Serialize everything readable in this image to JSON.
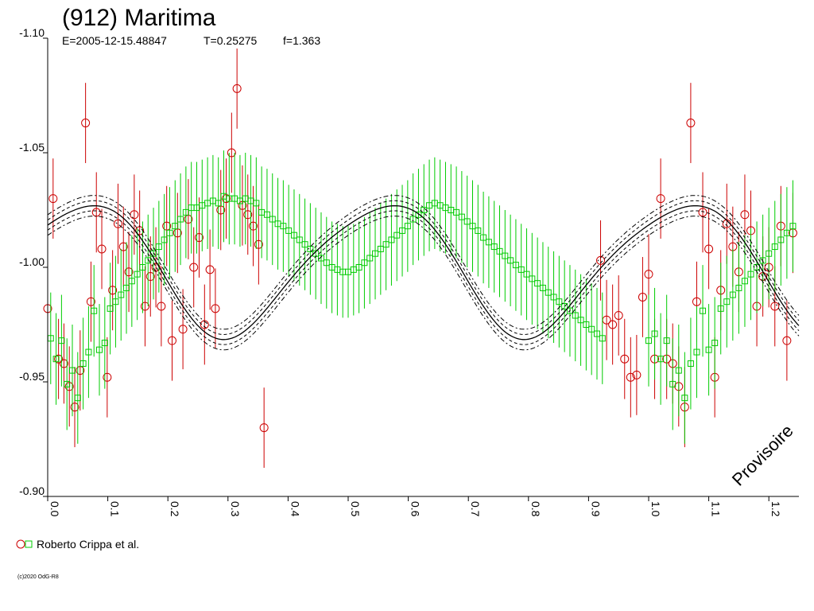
{
  "chart_data": {
    "type": "scatter",
    "title": "(912) Maritima",
    "subtitle": {
      "epoch": "E=2005-12-15.48847",
      "period": "T=0.25275",
      "amplitude_factor": "f=1.363"
    },
    "xlabel": "",
    "ylabel": "",
    "xlim": [
      0.0,
      1.25
    ],
    "ylim": [
      -1.1,
      -0.9
    ],
    "y_inverted": true,
    "x_ticks": [
      "0.0",
      "0.1",
      "0.2",
      "0.3",
      "0.4",
      "0.5",
      "0.6",
      "0.7",
      "0.8",
      "0.9",
      "1.0",
      "1.1",
      "1.2"
    ],
    "y_ticks": [
      "-1.10",
      "-1.05",
      "-1.00",
      "-0.95",
      "-0.90"
    ],
    "legend": {
      "label": "Roberto Crippa et al.",
      "placement": "bottom-left"
    },
    "watermark": "Provisoire",
    "colors": {
      "session1": "#cc0000",
      "session2": "#00cc00",
      "fit": "#000000"
    },
    "fit": {
      "mean": -1.0,
      "amp1": 0.0285,
      "phase1": 0.055,
      "amp2": 0.004,
      "phase2": 0.02,
      "band_inner": 0.0022,
      "band_outer": 0.0045
    },
    "series": [
      {
        "name": "session1",
        "marker": "circle",
        "phase": [
          0.0,
          0.009,
          0.018,
          0.027,
          0.036,
          0.045,
          0.054,
          0.063,
          0.072,
          0.081,
          0.09,
          0.099,
          0.108,
          0.117,
          0.126,
          0.135,
          0.144,
          0.153,
          0.162,
          0.171,
          0.18,
          0.189,
          0.198,
          0.207,
          0.216,
          0.225,
          0.234,
          0.243,
          0.252,
          0.261,
          0.27,
          0.279,
          0.288,
          0.297,
          0.306,
          0.315,
          0.324,
          0.333,
          0.342,
          0.351,
          0.36,
          0.92,
          0.93,
          0.94,
          0.95,
          0.96,
          0.97,
          0.98,
          0.99,
          1.0,
          1.01,
          1.02,
          1.03,
          1.04,
          1.05,
          1.06,
          1.07,
          1.08,
          1.09,
          1.1,
          1.11,
          1.12,
          1.13,
          1.14,
          1.15,
          1.16,
          1.17,
          1.18,
          1.19,
          1.2,
          1.21,
          1.22,
          1.23,
          1.24
        ],
        "mag": [
          -0.982,
          -1.03,
          -0.96,
          -0.958,
          -0.948,
          -0.939,
          -0.955,
          -1.063,
          -0.985,
          -1.024,
          -1.008,
          -0.952,
          -0.99,
          -1.019,
          -1.009,
          -0.998,
          -1.023,
          -1.016,
          -0.983,
          -0.996,
          -1.0,
          -0.983,
          -1.018,
          -0.968,
          -1.015,
          -0.973,
          -1.021,
          -1.0,
          -1.013,
          -0.975,
          -0.999,
          -0.982,
          -1.025,
          -1.03,
          -1.05,
          -1.078,
          -1.027,
          -1.023,
          -1.018,
          -1.01,
          -0.93,
          -1.003,
          -0.977,
          -0.975,
          -0.979,
          -0.96,
          -0.952,
          -0.953,
          -0.987,
          -0.997,
          -0.96,
          -1.03,
          -0.96,
          -0.958,
          -0.948,
          -0.939,
          -1.063,
          -0.985,
          -1.024,
          -1.008,
          -0.952,
          -0.99,
          -1.019,
          -1.009,
          -0.998,
          -1.023,
          -1.016,
          -0.983,
          -0.996,
          -1.0,
          -0.983,
          -1.018,
          -0.968,
          -1.015
        ],
        "err": 0.0175
      },
      {
        "name": "session2",
        "marker": "square",
        "phase": [
          0.005,
          0.014,
          0.023,
          0.032,
          0.041,
          0.05,
          0.059,
          0.068,
          0.077,
          0.086,
          0.095,
          0.104,
          0.113,
          0.122,
          0.131,
          0.14,
          0.149,
          0.158,
          0.167,
          0.176,
          0.185,
          0.194,
          0.203,
          0.212,
          0.221,
          0.23,
          0.239,
          0.248,
          0.257,
          0.266,
          0.275,
          0.284,
          0.293,
          0.302,
          0.311,
          0.32,
          0.329,
          0.338,
          0.347,
          0.356,
          0.365,
          0.374,
          0.383,
          0.392,
          0.401,
          0.41,
          0.419,
          0.428,
          0.437,
          0.446,
          0.455,
          0.464,
          0.473,
          0.482,
          0.491,
          0.5,
          0.509,
          0.518,
          0.527,
          0.536,
          0.545,
          0.554,
          0.563,
          0.572,
          0.581,
          0.59,
          0.599,
          0.608,
          0.617,
          0.626,
          0.635,
          0.644,
          0.653,
          0.662,
          0.671,
          0.68,
          0.689,
          0.698,
          0.707,
          0.716,
          0.725,
          0.734,
          0.743,
          0.752,
          0.761,
          0.77,
          0.779,
          0.788,
          0.797,
          0.806,
          0.815,
          0.824,
          0.833,
          0.842,
          0.851,
          0.86,
          0.869,
          0.878,
          0.887,
          0.896,
          0.905,
          0.914,
          0.923,
          1.0,
          1.01,
          1.02,
          1.03,
          1.04,
          1.05,
          1.06,
          1.07,
          1.08,
          1.09,
          1.1,
          1.11,
          1.12,
          1.13,
          1.14,
          1.15,
          1.16,
          1.17,
          1.18,
          1.19,
          1.2,
          1.21,
          1.22,
          1.23,
          1.24
        ],
        "mag": [
          -0.969,
          -0.96,
          -0.968,
          -0.949,
          -0.955,
          -0.943,
          -0.958,
          -0.963,
          -0.981,
          -0.964,
          -0.967,
          -0.982,
          -0.985,
          -0.988,
          -0.991,
          -0.994,
          -0.997,
          -1.0,
          -1.003,
          -1.006,
          -1.009,
          -1.012,
          -1.015,
          -1.018,
          -1.021,
          -1.024,
          -1.026,
          -1.026,
          -1.027,
          -1.028,
          -1.029,
          -1.028,
          -1.031,
          -1.03,
          -1.03,
          -1.029,
          -1.03,
          -1.029,
          -1.028,
          -1.024,
          -1.023,
          -1.021,
          -1.019,
          -1.018,
          -1.016,
          -1.014,
          -1.012,
          -1.01,
          -1.008,
          -1.006,
          -1.004,
          -1.002,
          -1.0,
          -0.999,
          -0.998,
          -0.998,
          -0.999,
          -1.0,
          -1.002,
          -1.004,
          -1.006,
          -1.008,
          -1.01,
          -1.012,
          -1.014,
          -1.016,
          -1.018,
          -1.021,
          -1.023,
          -1.025,
          -1.027,
          -1.028,
          -1.027,
          -1.026,
          -1.025,
          -1.024,
          -1.022,
          -1.02,
          -1.018,
          -1.016,
          -1.013,
          -1.011,
          -1.009,
          -1.007,
          -1.005,
          -1.003,
          -1.001,
          -0.999,
          -0.997,
          -0.995,
          -0.993,
          -0.991,
          -0.989,
          -0.987,
          -0.985,
          -0.983,
          -0.981,
          -0.979,
          -0.977,
          -0.975,
          -0.973,
          -0.971,
          -0.969,
          -0.968,
          -0.971,
          -0.96,
          -0.968,
          -0.949,
          -0.955,
          -0.943,
          -0.958,
          -0.963,
          -0.981,
          -0.964,
          -0.967,
          -0.982,
          -0.985,
          -0.988,
          -0.991,
          -0.994,
          -0.997,
          -1.0,
          -1.003,
          -1.006,
          -1.009,
          -1.012,
          -1.015,
          -1.018
        ],
        "err": 0.02
      }
    ]
  },
  "credit": "(c)2020 OdG-R8"
}
